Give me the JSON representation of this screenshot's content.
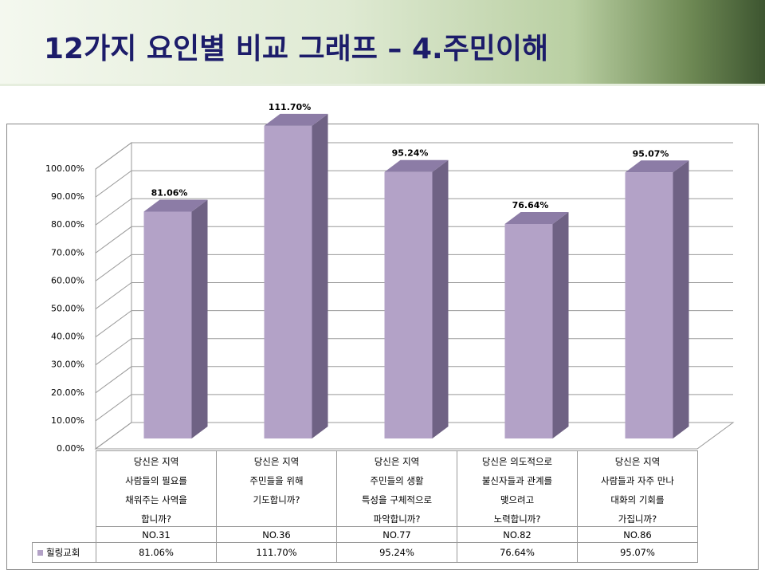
{
  "header": {
    "title": "12가지 요인별 비교 그래프 – 4.주민이해"
  },
  "chart_data": {
    "type": "bar",
    "three_d": true,
    "categories": [
      "당신은 지역\n사람들의 필요를\n채워주는 사역을\n합니까?",
      "당신은 지역\n주민들을 위해\n기도합니까?",
      "당신은 지역\n주민들의 생활\n특성을 구체적으로\n파악합니까?",
      "당신은 의도적으로\n불신자들과 관계를\n맺으려고\n노력합니까?",
      "당신은 지역\n사람들과 자주 만나\n대화의 기회를\n가집니까?"
    ],
    "category_codes": [
      "NO.31",
      "NO.36",
      "NO.77",
      "NO.82",
      "NO.86"
    ],
    "series": [
      {
        "name": "힐링교회",
        "color": "#b3a2c7",
        "values": [
          81.06,
          111.7,
          95.24,
          76.64,
          95.07
        ],
        "value_labels": [
          "81.06%",
          "111.70%",
          "95.24%",
          "76.64%",
          "95.07%"
        ]
      }
    ],
    "ylim": [
      0,
      100
    ],
    "yticks": [
      {
        "value": 0,
        "label": "0.00%"
      },
      {
        "value": 10,
        "label": "10.00%"
      },
      {
        "value": 20,
        "label": "20.00%"
      },
      {
        "value": 30,
        "label": "30.00%"
      },
      {
        "value": 40,
        "label": "40.00%"
      },
      {
        "value": 50,
        "label": "50.00%"
      },
      {
        "value": 60,
        "label": "60.00%"
      },
      {
        "value": 70,
        "label": "70.00%"
      },
      {
        "value": 80,
        "label": "80.00%"
      },
      {
        "value": 90,
        "label": "90.00%"
      },
      {
        "value": 100,
        "label": "100.00%"
      }
    ],
    "grid": true,
    "data_table": true
  }
}
